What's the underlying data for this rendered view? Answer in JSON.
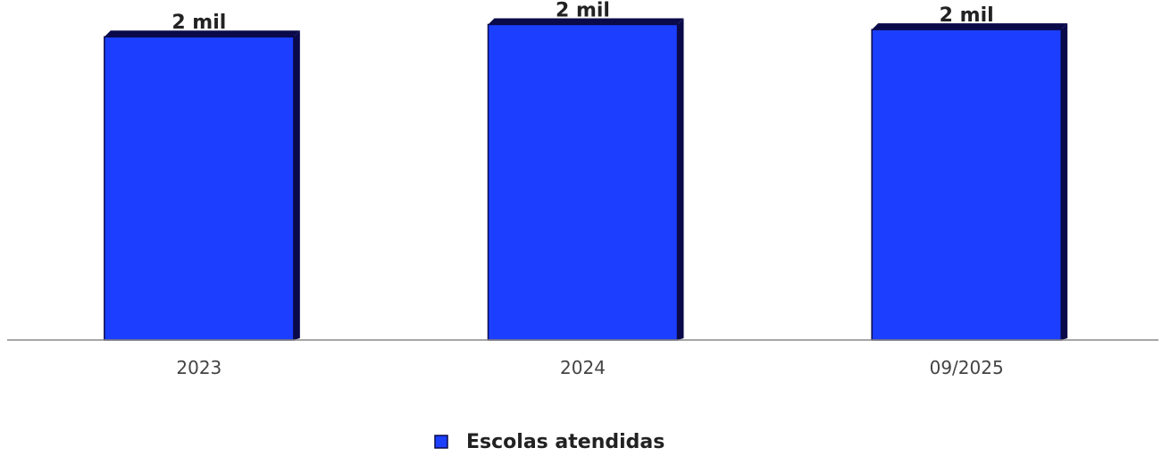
{
  "chart_data": {
    "type": "bar",
    "categories": [
      "2023",
      "2024",
      "09/2025"
    ],
    "series": [
      {
        "name": "Escolas atendidas",
        "values": [
          2095,
          2180,
          2145
        ],
        "data_labels": [
          "2 mil",
          "2 mil",
          "2 mil"
        ]
      }
    ],
    "ylim": [
      0,
      2300
    ],
    "grid": false,
    "legend": "bottom-center",
    "colors": {
      "bar": "#1c3fff",
      "bar_shadow": "#0a0a4a",
      "axis": "#888888"
    }
  }
}
